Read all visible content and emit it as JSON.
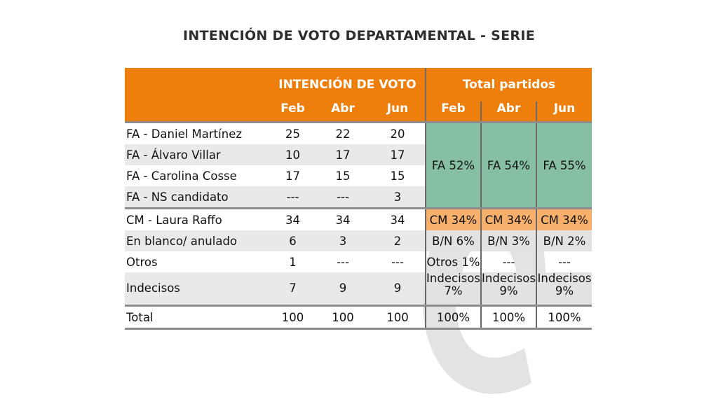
{
  "title": "INTENCIÓN DE VOTO DEPARTAMENTAL - SERIE",
  "header": {
    "group_left": "INTENCIÓN DE VOTO",
    "group_right": "Total partidos",
    "months_left": [
      "Feb",
      "Abr",
      "Jun"
    ],
    "months_right": [
      "Feb",
      "Abr",
      "Jun"
    ]
  },
  "rows": [
    {
      "label": "FA - Daniel Martínez",
      "values": [
        "25",
        "22",
        "20"
      ]
    },
    {
      "label": "FA - Álvaro Villar",
      "values": [
        "10",
        "17",
        "17"
      ]
    },
    {
      "label": "FA - Carolina Cosse",
      "values": [
        "17",
        "15",
        "15"
      ]
    },
    {
      "label": "FA - NS candidato",
      "values": [
        "---",
        "---",
        "3"
      ]
    },
    {
      "label": "CM - Laura Raffo",
      "values": [
        "34",
        "34",
        "34"
      ]
    },
    {
      "label": "En blanco/ anulado",
      "values": [
        "6",
        "3",
        "2"
      ]
    },
    {
      "label": "Otros",
      "values": [
        "1",
        "---",
        "---"
      ]
    },
    {
      "label": "Indecisos",
      "values": [
        "7",
        "9",
        "9"
      ]
    },
    {
      "label": "Total",
      "values": [
        "100",
        "100",
        "100"
      ]
    }
  ],
  "totals": {
    "fa": [
      "FA 52%",
      "FA 54%",
      "FA 55%"
    ],
    "cm": [
      "CM 34%",
      "CM 34%",
      "CM 34%"
    ],
    "bn": [
      "B/N 6%",
      "B/N 3%",
      "B/N 2%"
    ],
    "otros": [
      "Otros 1%",
      "---",
      "---"
    ],
    "indecisos": [
      "Indecisos 7%",
      "Indecisos 9%",
      "Indecisos 9%"
    ],
    "total": [
      "100%",
      "100%",
      "100%"
    ]
  },
  "colors": {
    "orange": "#ef7f0c",
    "green": "#87bfa2",
    "light_orange": "#f7b06c"
  },
  "chart_data": {
    "type": "table",
    "title": "INTENCIÓN DE VOTO DEPARTAMENTAL - SERIE",
    "columns": [
      "Feb",
      "Abr",
      "Jun"
    ],
    "candidates": {
      "FA - Daniel Martínez": [
        25,
        22,
        20
      ],
      "FA - Álvaro Villar": [
        10,
        17,
        17
      ],
      "FA - Carolina Cosse": [
        17,
        15,
        15
      ],
      "FA - NS candidato": [
        null,
        null,
        3
      ],
      "CM - Laura Raffo": [
        34,
        34,
        34
      ],
      "En blanco/ anulado": [
        6,
        3,
        2
      ],
      "Otros": [
        1,
        null,
        null
      ],
      "Indecisos": [
        7,
        9,
        9
      ],
      "Total": [
        100,
        100,
        100
      ]
    },
    "party_totals": {
      "FA": [
        52,
        54,
        55
      ],
      "CM": [
        34,
        34,
        34
      ],
      "B/N": [
        6,
        3,
        2
      ],
      "Otros": [
        1,
        null,
        null
      ],
      "Indecisos": [
        7,
        9,
        9
      ],
      "Total": [
        100,
        100,
        100
      ]
    }
  }
}
